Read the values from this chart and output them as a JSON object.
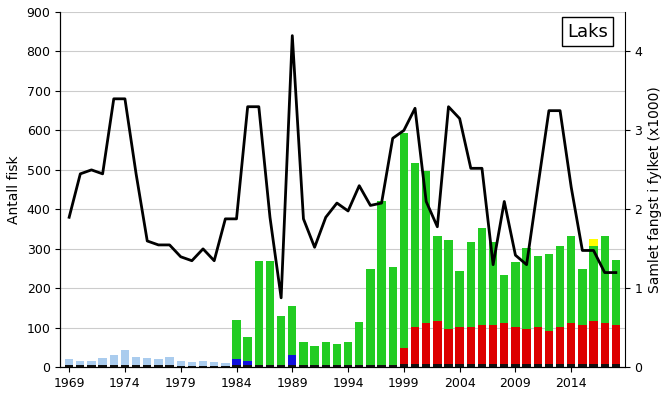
{
  "years": [
    1969,
    1970,
    1971,
    1972,
    1973,
    1974,
    1975,
    1976,
    1977,
    1978,
    1979,
    1980,
    1981,
    1982,
    1983,
    1984,
    1985,
    1986,
    1987,
    1988,
    1989,
    1990,
    1991,
    1992,
    1993,
    1994,
    1995,
    1996,
    1997,
    1998,
    1999,
    2000,
    2001,
    2002,
    2003,
    2004,
    2005,
    2006,
    2007,
    2008,
    2009,
    2010,
    2011,
    2012,
    2013,
    2014,
    2015,
    2016,
    2017,
    2018
  ],
  "black_bars": [
    5,
    5,
    5,
    5,
    5,
    5,
    5,
    5,
    5,
    5,
    3,
    3,
    3,
    3,
    3,
    5,
    5,
    5,
    5,
    5,
    5,
    5,
    5,
    5,
    5,
    5,
    5,
    5,
    5,
    5,
    8,
    8,
    8,
    8,
    8,
    8,
    8,
    8,
    8,
    8,
    8,
    8,
    8,
    8,
    8,
    8,
    8,
    8,
    8,
    8
  ],
  "blue_bars": [
    0,
    0,
    0,
    0,
    0,
    0,
    0,
    0,
    0,
    0,
    0,
    0,
    0,
    0,
    0,
    15,
    12,
    0,
    0,
    0,
    25,
    0,
    0,
    0,
    0,
    0,
    0,
    0,
    0,
    0,
    0,
    0,
    0,
    0,
    0,
    0,
    0,
    0,
    0,
    0,
    0,
    0,
    0,
    0,
    0,
    0,
    0,
    0,
    0,
    0
  ],
  "light_blue_bars": [
    15,
    10,
    12,
    18,
    25,
    40,
    22,
    18,
    15,
    20,
    12,
    10,
    12,
    10,
    8,
    0,
    0,
    0,
    0,
    0,
    0,
    0,
    0,
    0,
    0,
    0,
    0,
    0,
    0,
    0,
    0,
    0,
    0,
    0,
    0,
    0,
    0,
    0,
    0,
    0,
    0,
    0,
    0,
    0,
    0,
    0,
    0,
    0,
    0,
    0
  ],
  "red_bars": [
    0,
    0,
    0,
    0,
    0,
    0,
    0,
    0,
    0,
    0,
    0,
    0,
    0,
    0,
    0,
    0,
    0,
    0,
    0,
    0,
    0,
    0,
    0,
    0,
    0,
    0,
    0,
    0,
    0,
    0,
    40,
    95,
    105,
    110,
    90,
    95,
    95,
    100,
    100,
    105,
    95,
    90,
    95,
    85,
    95,
    105,
    100,
    110,
    105,
    100
  ],
  "green_bars": [
    0,
    0,
    0,
    0,
    0,
    0,
    0,
    0,
    0,
    0,
    0,
    0,
    0,
    0,
    0,
    100,
    60,
    265,
    265,
    125,
    125,
    60,
    50,
    60,
    55,
    60,
    110,
    245,
    415,
    250,
    545,
    415,
    385,
    215,
    225,
    140,
    215,
    245,
    210,
    120,
    165,
    205,
    180,
    195,
    205,
    220,
    140,
    190,
    220,
    165
  ],
  "yellow_bars": [
    0,
    0,
    0,
    0,
    0,
    0,
    0,
    0,
    0,
    0,
    0,
    0,
    0,
    0,
    0,
    0,
    0,
    0,
    0,
    0,
    0,
    0,
    0,
    0,
    0,
    0,
    0,
    0,
    0,
    0,
    0,
    0,
    0,
    0,
    0,
    0,
    0,
    0,
    0,
    0,
    0,
    0,
    0,
    0,
    0,
    0,
    0,
    18,
    0,
    0
  ],
  "line_values": [
    1.9,
    2.45,
    2.5,
    2.45,
    3.4,
    3.4,
    2.45,
    1.6,
    1.55,
    1.55,
    1.4,
    1.35,
    1.5,
    1.35,
    1.88,
    1.88,
    3.3,
    3.3,
    1.9,
    0.88,
    4.2,
    1.88,
    1.52,
    1.9,
    2.08,
    1.98,
    2.3,
    2.05,
    2.08,
    2.9,
    3.0,
    3.28,
    2.1,
    1.78,
    3.3,
    3.15,
    2.52,
    2.52,
    1.3,
    2.1,
    1.42,
    1.3,
    2.28,
    3.25,
    3.25,
    2.28,
    1.48,
    1.48,
    1.2,
    1.2
  ],
  "ylim_left": [
    0,
    900
  ],
  "ylim_right": [
    0,
    4.5
  ],
  "ylabel_left": "Antall fisk",
  "ylabel_right": "Samlet fangst i fylket (x1000)",
  "title": "Laks",
  "xtick_years": [
    1969,
    1974,
    1979,
    1984,
    1989,
    1994,
    1999,
    2004,
    2009,
    2014
  ],
  "yticks_left": [
    0,
    100,
    200,
    300,
    400,
    500,
    600,
    700,
    800,
    900
  ],
  "yticks_right": [
    0,
    1,
    2,
    3,
    4
  ],
  "bar_width": 0.75,
  "xlim": [
    1968.2,
    2018.8
  ],
  "colors": {
    "black": "#111111",
    "blue": "#1010dd",
    "light_blue": "#aaccee",
    "red": "#dd0000",
    "green": "#22cc22",
    "yellow": "#ffff00",
    "line": "#000000",
    "grid": "#cccccc",
    "background": "#ffffff"
  },
  "title_fontsize": 13,
  "ylabel_fontsize": 10,
  "tick_fontsize": 9
}
